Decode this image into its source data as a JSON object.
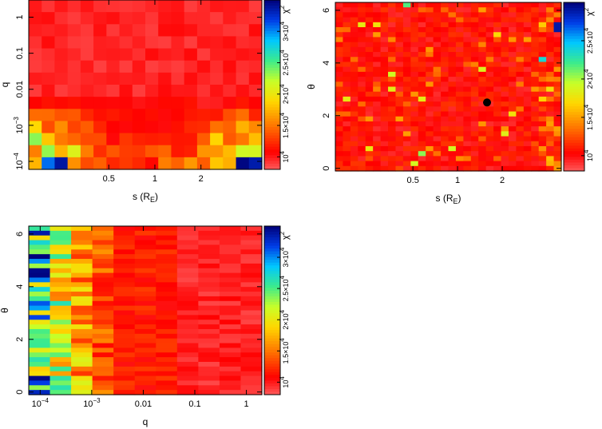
{
  "chart_data": [
    {
      "type": "heatmap",
      "panel": "top-left",
      "xlabel": "s (R_E)",
      "ylabel": "q",
      "x_scale": "log",
      "y_scale": "log",
      "xlim": [
        0.15,
        5.0
      ],
      "ylim": [
        6e-05,
        3.0
      ],
      "x_ticks": [
        {
          "value": 0.5,
          "label": "0.5"
        },
        {
          "value": 1,
          "label": "1"
        },
        {
          "value": 2,
          "label": "2"
        }
      ],
      "y_ticks": [
        {
          "value": 0.0001,
          "label": "10",
          "exp": "−4"
        },
        {
          "value": 0.001,
          "label": "10",
          "exp": "−3"
        },
        {
          "value": 0.01,
          "label": "0.01"
        },
        {
          "value": 0.1,
          "label": "0.1"
        },
        {
          "value": 1,
          "label": "1"
        }
      ],
      "grid_size": [
        18,
        14
      ],
      "value_range": [
        8000,
        35000
      ],
      "colorbar": {
        "label": "χ",
        "label_sup": "2",
        "ticks": [
          {
            "value": 10000,
            "label": "10",
            "exp": "4"
          },
          {
            "value": 15000,
            "label": "1.5×10",
            "exp": "4"
          },
          {
            "value": 20000,
            "label": "2×10",
            "exp": "4"
          },
          {
            "value": 25000,
            "label": "2.5×10",
            "exp": "4"
          },
          {
            "value": 30000,
            "label": "3×10",
            "exp": "4"
          }
        ]
      },
      "marker": null
    },
    {
      "type": "heatmap",
      "panel": "top-right",
      "xlabel": "s (R_E)",
      "ylabel": "θ",
      "x_scale": "log",
      "y_scale": "linear",
      "xlim": [
        0.15,
        5.0
      ],
      "ylim": [
        -0.1,
        6.3
      ],
      "x_ticks": [
        {
          "value": 0.5,
          "label": "0.5"
        },
        {
          "value": 1,
          "label": "1"
        },
        {
          "value": 2,
          "label": "2"
        }
      ],
      "y_ticks": [
        {
          "value": 0,
          "label": "0"
        },
        {
          "value": 2,
          "label": "2"
        },
        {
          "value": 4,
          "label": "4"
        },
        {
          "value": 6,
          "label": "6"
        }
      ],
      "grid_size": [
        30,
        34
      ],
      "value_range": [
        8000,
        30000
      ],
      "colorbar": {
        "label": "χ",
        "label_sup": "2",
        "ticks": [
          {
            "value": 10000,
            "label": "10",
            "exp": "4"
          },
          {
            "value": 15000,
            "label": "1.5×10",
            "exp": "4"
          },
          {
            "value": 20000,
            "label": "2×10",
            "exp": "4"
          },
          {
            "value": 25000,
            "label": "2.5×10",
            "exp": "4"
          }
        ]
      },
      "marker": {
        "x": 1.58,
        "y": 2.5
      }
    },
    {
      "type": "heatmap",
      "panel": "bottom-left",
      "xlabel": "q",
      "ylabel": "θ",
      "x_scale": "log",
      "y_scale": "linear",
      "xlim": [
        6e-05,
        2.0
      ],
      "ylim": [
        -0.1,
        6.3
      ],
      "x_ticks": [
        {
          "value": 0.0001,
          "label": "10",
          "exp": "−4"
        },
        {
          "value": 0.001,
          "label": "10",
          "exp": "−3"
        },
        {
          "value": 0.01,
          "label": "0.01"
        },
        {
          "value": 0.1,
          "label": "0.1"
        },
        {
          "value": 1,
          "label": "1"
        }
      ],
      "y_ticks": [
        {
          "value": 0,
          "label": "0"
        },
        {
          "value": 2,
          "label": "2"
        },
        {
          "value": 4,
          "label": "4"
        },
        {
          "value": 6,
          "label": "6"
        }
      ],
      "grid_size": [
        11,
        36
      ],
      "value_range": [
        8000,
        35000
      ],
      "colorbar": {
        "label": "χ",
        "label_sup": "2",
        "ticks": [
          {
            "value": 10000,
            "label": "10",
            "exp": "4"
          },
          {
            "value": 15000,
            "label": "1.5×10",
            "exp": "4"
          },
          {
            "value": 20000,
            "label": "2×10",
            "exp": "4"
          },
          {
            "value": 25000,
            "label": "2.5×10",
            "exp": "4"
          },
          {
            "value": 30000,
            "label": "3×10",
            "exp": "4"
          }
        ]
      },
      "marker": null
    }
  ]
}
